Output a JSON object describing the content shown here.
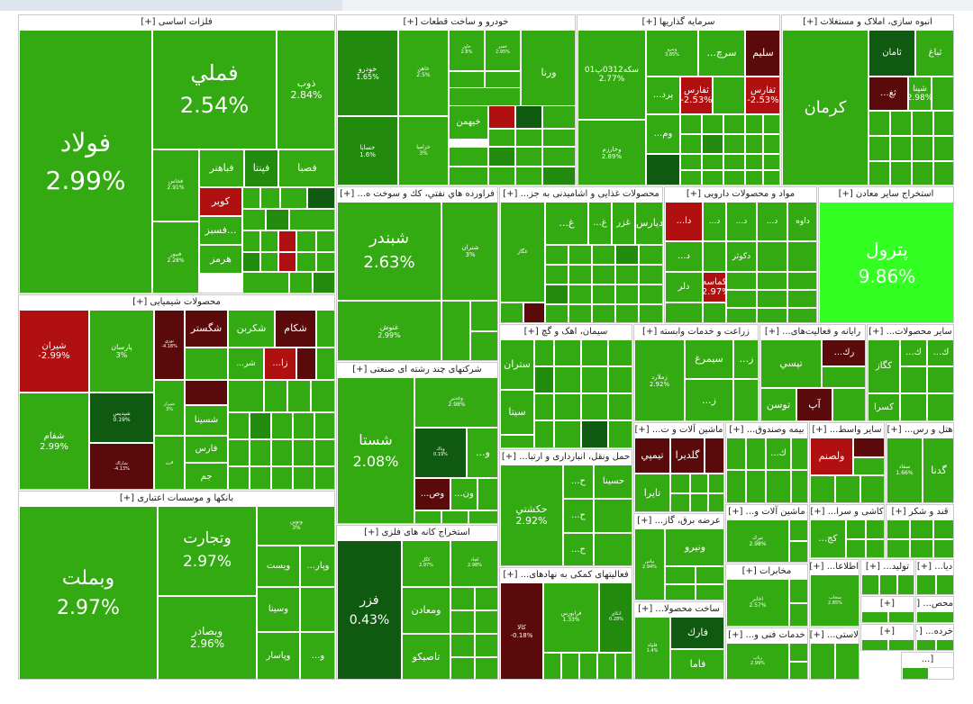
{
  "colors": {
    "pos_mid": "#33aa11",
    "pos_light": "#3cc01a",
    "pos_bright": "#33ff22",
    "pos_dark": "#228a0c",
    "pos_darker": "#0f5a10",
    "neg_mid": "#b01010",
    "neg_dark": "#5a0a0a"
  },
  "sectors": [
    {
      "id": "metals",
      "title": "فلزات اساسی [+]"
    },
    {
      "id": "auto",
      "title": "خودرو و ساخت قطعات [+]"
    },
    {
      "id": "invest",
      "title": "سرمایه گذاریها [+]"
    },
    {
      "id": "realestate",
      "title": "انبوه سازی، املاک و مستغلات [+]"
    },
    {
      "id": "petroleum",
      "title": "فراورده هاي نفتي، كك و سوخت ه... [+]"
    },
    {
      "id": "food",
      "title": "محصولات غذایی و اشامیدنی به جز... [+]"
    },
    {
      "id": "pharma",
      "title": "مواد و محصولات دارویی [+]"
    },
    {
      "id": "othermining",
      "title": "استخراج سایر معادن [+]"
    },
    {
      "id": "chemical",
      "title": "محصولات شیمیایی [+]"
    },
    {
      "id": "multi",
      "title": "شرکتهای چند رشته ای صنعتی [+]"
    },
    {
      "id": "cement",
      "title": "سیمان، اهک و گچ [+]"
    },
    {
      "id": "agri",
      "title": "زراعت و خدمات وابسته [+]"
    },
    {
      "id": "computer",
      "title": "رایانه و فعالیت‌های... [+]"
    },
    {
      "id": "otherprod",
      "title": "سایر محصولات... [+]"
    },
    {
      "id": "banks",
      "title": "بانکها و موسسات اعتباری [+]"
    },
    {
      "id": "transport",
      "title": "حمل ونقل، انبارداری و ارتبا... [+]"
    },
    {
      "id": "machinery",
      "title": "ماشین آلات و ت... [+]"
    },
    {
      "id": "insurance",
      "title": "بیمه وصندوق... [+]"
    },
    {
      "id": "brokers",
      "title": "سایر واسط... [+]"
    },
    {
      "id": "hotel",
      "title": "هتل و رس... [+]"
    },
    {
      "id": "metalore",
      "title": "استخراج کانه های فلزی [+]"
    },
    {
      "id": "utilities",
      "title": "عرضه برق، گاز... [+]"
    },
    {
      "id": "machinery2",
      "title": "ماشین آلات و... [+]"
    },
    {
      "id": "tile",
      "title": "کاشی و سرا... [+]"
    },
    {
      "id": "sugar",
      "title": "قند و شکر [+]"
    },
    {
      "id": "telecom",
      "title": "مخابرات [+]"
    },
    {
      "id": "info",
      "title": "اطلاعا... [+]"
    },
    {
      "id": "production",
      "title": "تولید... [+]"
    },
    {
      "id": "fintech",
      "title": "دیا... [+]"
    },
    {
      "id": "financial",
      "title": "فعالیتهای کمکی به نهادهای... [+]"
    },
    {
      "id": "metalprod",
      "title": "ساخت محصولا... [+]"
    },
    {
      "id": "engineering",
      "title": "خدمات فنی و... [+]"
    },
    {
      "id": "plastic",
      "title": "لاستی... [+]"
    },
    {
      "id": "sm1",
      "title": "[+]"
    },
    {
      "id": "sm2",
      "title": "محص... [+]"
    },
    {
      "id": "sm3",
      "title": "[+]"
    },
    {
      "id": "sm4",
      "title": "خرده... [+]"
    },
    {
      "id": "sm5",
      "title": "[..."
    }
  ],
  "cells": [
    {
      "n": "فولاد",
      "p": "2.99%",
      "c": "pos_mid"
    },
    {
      "n": "فملي",
      "p": "2.54%",
      "c": "pos_mid"
    },
    {
      "n": "ذوب",
      "p": "2.84%",
      "c": "pos_mid"
    },
    {
      "n": "فخاس",
      "p": "2.91%",
      "c": "pos_mid"
    },
    {
      "n": "فباهنر",
      "p": "",
      "c": "pos_mid"
    },
    {
      "n": "فپنتا",
      "p": "",
      "c": "pos_dark"
    },
    {
      "n": "فصبا",
      "p": "",
      "c": "pos_mid"
    },
    {
      "n": "فنيور",
      "p": "2.28%",
      "c": "pos_mid"
    },
    {
      "n": "کویر",
      "p": "",
      "c": "neg_mid"
    },
    {
      "n": "فسبز...",
      "p": "",
      "c": "pos_mid"
    },
    {
      "n": "هرمز",
      "p": "",
      "c": "pos_mid"
    },
    {
      "n": "خودرو",
      "p": "1.65%",
      "c": "pos_dark"
    },
    {
      "n": "خاهن",
      "p": "2.5%",
      "c": "pos_mid"
    },
    {
      "n": "خاور",
      "p": "2.8%",
      "c": "pos_mid"
    },
    {
      "n": "خفنر",
      "p": "2.95%",
      "c": "pos_mid"
    },
    {
      "n": "ورنا",
      "p": "",
      "c": "pos_mid"
    },
    {
      "n": "خيهمن",
      "p": "",
      "c": "pos_mid"
    },
    {
      "n": "خساپا",
      "p": "1.6%",
      "c": "pos_dark"
    },
    {
      "n": "خزامیا",
      "p": "3%",
      "c": "pos_mid"
    },
    {
      "n": "سکه0312پ01",
      "p": "2.77%",
      "c": "pos_mid"
    },
    {
      "n": "وخارزم",
      "p": "2.89%",
      "c": "pos_mid"
    },
    {
      "n": "وپترو",
      "p": "3.85%",
      "c": "pos_mid"
    },
    {
      "n": "...سرچ",
      "p": "",
      "c": "pos_mid"
    },
    {
      "n": "سليم",
      "p": "",
      "c": "neg_dark"
    },
    {
      "n": "...پرد",
      "p": "",
      "c": "pos_mid"
    },
    {
      "n": "...وم",
      "p": "",
      "c": "pos_mid"
    },
    {
      "n": "...و",
      "p": "",
      "c": "pos_mid"
    },
    {
      "n": "ثفارس",
      "p": "-2.53%",
      "c": "neg_mid"
    },
    {
      "n": "كرمان",
      "p": "",
      "c": "pos_mid"
    },
    {
      "n": "ثامان",
      "p": "",
      "c": "pos_darker"
    },
    {
      "n": "ثباغ",
      "p": "",
      "c": "pos_mid"
    },
    {
      "n": "...ثغ",
      "p": "",
      "c": "neg_dark"
    },
    {
      "n": "شپنا",
      "p": "2.98%",
      "c": "pos_mid"
    },
    {
      "n": "شبندر",
      "p": "2.63%",
      "c": "pos_mid"
    },
    {
      "n": "شتران",
      "p": "3%",
      "c": "pos_mid"
    },
    {
      "n": "غنوش",
      "p": "2.99%",
      "c": "pos_mid"
    },
    {
      "n": "غگاز",
      "p": "",
      "c": "pos_mid"
    },
    {
      "n": "...غ",
      "p": "",
      "c": "pos_mid"
    },
    {
      "n": "...غ",
      "p": "",
      "c": "pos_mid"
    },
    {
      "n": "غزر",
      "p": "",
      "c": "pos_mid"
    },
    {
      "n": "ديارس",
      "p": "",
      "c": "pos_mid"
    },
    {
      "n": "...دا",
      "p": "",
      "c": "neg_mid"
    },
    {
      "n": "...د",
      "p": "",
      "c": "pos_mid"
    },
    {
      "n": "...د",
      "p": "",
      "c": "pos_mid"
    },
    {
      "n": "...د",
      "p": "",
      "c": "pos_mid"
    },
    {
      "n": "داوه",
      "p": "",
      "c": "pos_mid"
    },
    {
      "n": "...د",
      "p": "",
      "c": "pos_mid"
    },
    {
      "n": "دكوثر",
      "p": "",
      "c": "pos_mid"
    },
    {
      "n": "دلر",
      "p": "",
      "c": "pos_mid"
    },
    {
      "n": "كماسه",
      "p": "-2.97%",
      "c": "neg_mid"
    },
    {
      "n": "پترول",
      "p": "9.86%",
      "c": "pos_bright"
    },
    {
      "n": "شيران",
      "p": "-2.99%",
      "c": "neg_mid"
    },
    {
      "n": "شفام",
      "p": "2.99%",
      "c": "pos_mid"
    },
    {
      "n": "پارسان",
      "p": "3%",
      "c": "pos_mid"
    },
    {
      "n": "شپديس",
      "p": "0.19%",
      "c": "pos_darker"
    },
    {
      "n": "شاراك",
      "p": "-4.13%",
      "c": "neg_dark"
    },
    {
      "n": "نوري",
      "p": "-4.18%",
      "c": "neg_dark"
    },
    {
      "n": "شيراز",
      "p": "3%",
      "c": "pos_mid"
    },
    {
      "n": "قرن",
      "p": "",
      "c": "pos_mid"
    },
    {
      "n": "شگستر",
      "p": "",
      "c": "neg_dark"
    },
    {
      "n": "شكربن",
      "p": "",
      "c": "pos_mid"
    },
    {
      "n": "شكام",
      "p": "",
      "c": "neg_dark"
    },
    {
      "n": "...شر",
      "p": "",
      "c": "pos_mid"
    },
    {
      "n": "...زا",
      "p": "",
      "c": "neg_mid"
    },
    {
      "n": "شسينا",
      "p": "",
      "c": "pos_mid"
    },
    {
      "n": "فارس",
      "p": "",
      "c": "pos_mid"
    },
    {
      "n": "جم",
      "p": "",
      "c": "pos_mid"
    },
    {
      "n": "شستا",
      "p": "2.08%",
      "c": "pos_mid"
    },
    {
      "n": "وغدير",
      "p": "2.98%",
      "c": "pos_mid"
    },
    {
      "n": "وپاك",
      "p": "0.19%",
      "c": "pos_darker"
    },
    {
      "n": "...و",
      "p": "",
      "c": "pos_mid"
    },
    {
      "n": "...وص",
      "p": "",
      "c": "neg_dark"
    },
    {
      "n": "...ون",
      "p": "",
      "c": "pos_mid"
    },
    {
      "n": "ستران",
      "p": "",
      "c": "pos_mid"
    },
    {
      "n": "سيتا",
      "p": "",
      "c": "pos_mid"
    },
    {
      "n": "زملارد",
      "p": "2.92%",
      "c": "pos_mid"
    },
    {
      "n": "سيمرغ",
      "p": "",
      "c": "pos_mid"
    },
    {
      "n": "...ز",
      "p": "",
      "c": "pos_mid"
    },
    {
      "n": "...ز",
      "p": "",
      "c": "pos_mid"
    },
    {
      "n": "...رك",
      "p": "",
      "c": "neg_dark"
    },
    {
      "n": "تپسي",
      "p": "",
      "c": "pos_mid"
    },
    {
      "n": "توسن",
      "p": "",
      "c": "pos_mid"
    },
    {
      "n": "آپ",
      "p": "",
      "c": "neg_dark"
    },
    {
      "n": "كگاز",
      "p": "",
      "c": "pos_mid"
    },
    {
      "n": "...ك",
      "p": "",
      "c": "pos_mid"
    },
    {
      "n": "...ك",
      "p": "",
      "c": "pos_mid"
    },
    {
      "n": "كسرا",
      "p": "",
      "c": "pos_mid"
    },
    {
      "n": "وبملت",
      "p": "2.97%",
      "c": "pos_mid"
    },
    {
      "n": "وتجارت",
      "p": "2.97%",
      "c": "pos_mid"
    },
    {
      "n": "وبصادر",
      "p": "2.96%",
      "c": "pos_mid"
    },
    {
      "n": "ونوين",
      "p": "3%",
      "c": "pos_mid"
    },
    {
      "n": "ويست",
      "p": "",
      "c": "pos_mid"
    },
    {
      "n": "...وپار",
      "p": "",
      "c": "pos_mid"
    },
    {
      "n": "وسينا",
      "p": "",
      "c": "pos_mid"
    },
    {
      "n": "وپاسار",
      "p": "",
      "c": "pos_mid"
    },
    {
      "n": "...و",
      "p": "",
      "c": "pos_mid"
    },
    {
      "n": "حكشتي",
      "p": "2.92%",
      "c": "pos_mid"
    },
    {
      "n": "...ح",
      "p": "",
      "c": "pos_mid"
    },
    {
      "n": "حسينا",
      "p": "",
      "c": "pos_mid"
    },
    {
      "n": "...ح",
      "p": "",
      "c": "pos_mid"
    },
    {
      "n": "...ح",
      "p": "",
      "c": "pos_mid"
    },
    {
      "n": "تيمپي",
      "p": "",
      "c": "neg_dark"
    },
    {
      "n": "گلديرا",
      "p": "",
      "c": "neg_dark"
    },
    {
      "n": "تايرا",
      "p": "",
      "c": "pos_mid"
    },
    {
      "n": "...ك",
      "p": "",
      "c": "pos_mid"
    },
    {
      "n": "ولصنم",
      "p": "",
      "c": "neg_mid"
    },
    {
      "n": "سفاد",
      "p": "1.66%",
      "c": "pos_mid"
    },
    {
      "n": "گدنا",
      "p": "",
      "c": "pos_mid"
    },
    {
      "n": "فزر",
      "p": "0.43%",
      "c": "pos_darker"
    },
    {
      "n": "كگل",
      "p": "2.97%",
      "c": "pos_mid"
    },
    {
      "n": "كچاد",
      "p": "2.98%",
      "c": "pos_mid"
    },
    {
      "n": "ومعادن",
      "p": "",
      "c": "pos_mid"
    },
    {
      "n": "تاصيكو",
      "p": "",
      "c": "pos_mid"
    },
    {
      "n": "ونيرو",
      "p": "",
      "c": "pos_mid"
    },
    {
      "n": "بپاس",
      "p": "2.94%",
      "c": "pos_mid"
    },
    {
      "n": "تبرك",
      "p": "2.98%",
      "c": "pos_mid"
    },
    {
      "n": "...كج",
      "p": "",
      "c": "pos_mid"
    },
    {
      "n": "اخابر",
      "p": "2.57%",
      "c": "pos_mid"
    },
    {
      "n": "سخاب",
      "p": "2.85%",
      "c": "pos_mid"
    },
    {
      "n": "كالا",
      "p": "-0.18%",
      "c": "neg_dark"
    },
    {
      "n": "فرابورس",
      "p": "1.33%",
      "c": "pos_mid"
    },
    {
      "n": "اتكاي",
      "p": "0.28%",
      "c": "pos_dark"
    },
    {
      "n": "فارك",
      "p": "",
      "c": "pos_darker"
    },
    {
      "n": "فاما",
      "p": "",
      "c": "pos_mid"
    },
    {
      "n": "فلوله",
      "p": "1.4%",
      "c": "pos_mid"
    },
    {
      "n": "رتاپ",
      "p": "2.99%",
      "c": "pos_mid"
    }
  ]
}
